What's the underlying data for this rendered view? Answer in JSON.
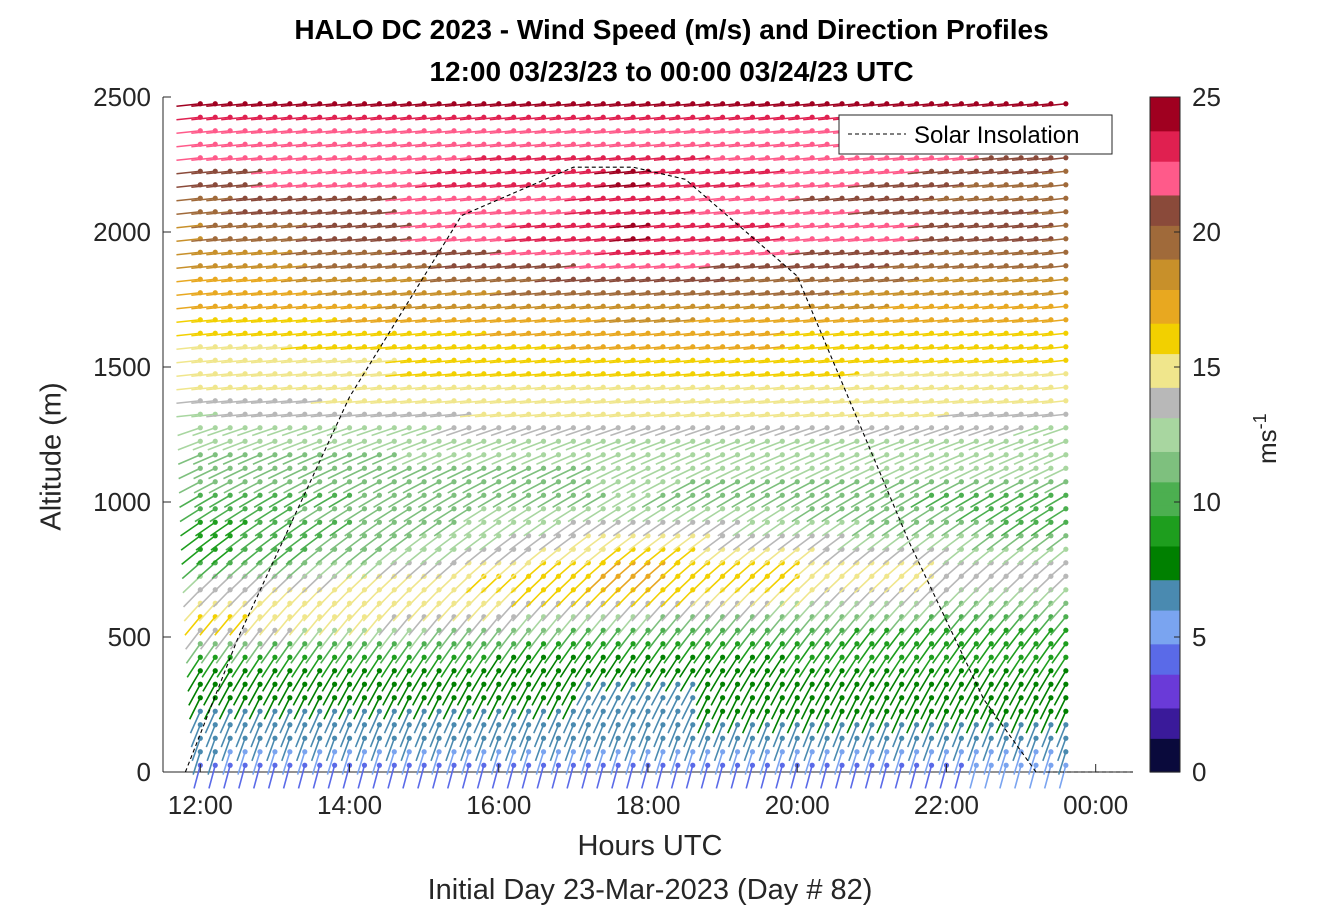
{
  "chart_data": {
    "type": "barbs",
    "title": "HALO DC 2023 - Wind Speed (m/s) and Direction Profiles",
    "subtitle": "12:00 03/23/23 to 00:00 03/24/23  UTC",
    "xlabel": "Hours UTC",
    "footer": "Initial Day 23-Mar-2023 (Day # 82)",
    "ylabel": "Altitude (m)",
    "xlim": [
      11.5,
      24.5
    ],
    "ylim": [
      0,
      2500
    ],
    "x_ticks": [
      12,
      14,
      16,
      18,
      20,
      22,
      24
    ],
    "x_tick_labels": [
      "12:00",
      "14:00",
      "16:00",
      "18:00",
      "20:00",
      "22:00",
      "00:00"
    ],
    "y_ticks": [
      0,
      500,
      1000,
      1500,
      2000,
      2500
    ],
    "y_tick_labels": [
      "0",
      "500",
      "1000",
      "1500",
      "2000",
      "2500"
    ],
    "colorbar": {
      "label_base": "ms",
      "label_exp": "-1",
      "range": [
        0,
        25
      ],
      "ticks": [
        0,
        5,
        10,
        15,
        20,
        25
      ],
      "tick_labels": [
        "0",
        "5",
        "10",
        "15",
        "20",
        "25"
      ],
      "colors": [
        "#0a0a3c",
        "#3a1a9a",
        "#6a3ad8",
        "#5a6ae8",
        "#7aa4f0",
        "#4a8ab0",
        "#008000",
        "#1e9e1e",
        "#4caf50",
        "#7ec07e",
        "#a8d6a0",
        "#b8b8b8",
        "#f0e68c",
        "#f2d000",
        "#e8a820",
        "#c8902a",
        "#a06a3a",
        "#8a4a3a",
        "#ff5a8a",
        "#e02050",
        "#a00020"
      ]
    },
    "legend": {
      "entries": [
        "Solar Insolation"
      ],
      "placement": "top-right"
    },
    "solar_insolation": {
      "description_points_hours": [
        11.8,
        12.5,
        14.0,
        15.5,
        17.0,
        17.8,
        18.5,
        20.0,
        21.5,
        22.5,
        23.2,
        24.5
      ],
      "relative_values": [
        0.0,
        0.22,
        0.62,
        0.92,
        1.0,
        1.0,
        0.98,
        0.82,
        0.38,
        0.12,
        0.0,
        0.0
      ]
    },
    "time_start_hour": 12.0,
    "time_end_hour": 23.75,
    "time_step_hours": 0.2,
    "altitudes_m": [
      25,
      75,
      125,
      175,
      225,
      275,
      325,
      375,
      425,
      475,
      525,
      575,
      625,
      675,
      725,
      775,
      825,
      875,
      925,
      975,
      1025,
      1075,
      1125,
      1175,
      1225,
      1275,
      1325,
      1375,
      1425,
      1475,
      1525,
      1575,
      1625,
      1675,
      1725,
      1775,
      1825,
      1875,
      1925,
      1975,
      2025,
      2075,
      2125,
      2175,
      2225,
      2275,
      2325,
      2375,
      2425,
      2475
    ],
    "speed_profile_ms": {
      "early": [
        4,
        6,
        7,
        7,
        7,
        8,
        8,
        8,
        9,
        11,
        14,
        16,
        15,
        14,
        13,
        10,
        9,
        9,
        9,
        10,
        10,
        11,
        11,
        11,
        12,
        12,
        13,
        14,
        15,
        15,
        15,
        15,
        16,
        16,
        17,
        17,
        17,
        18,
        18,
        19,
        19,
        20,
        20,
        21,
        21,
        22,
        22,
        22,
        23,
        24
      ],
      "middle": [
        4,
        5,
        6,
        7,
        7,
        7,
        7,
        8,
        8,
        9,
        10,
        12,
        14,
        16,
        17,
        17,
        16,
        15,
        14,
        13,
        12,
        12,
        12,
        13,
        13,
        14,
        15,
        15,
        15,
        16,
        16,
        17,
        17,
        18,
        19,
        20,
        21,
        22,
        23,
        24,
        24,
        23,
        23,
        24,
        24,
        23,
        22,
        22,
        23,
        24
      ],
      "late": [
        5,
        6,
        7,
        7,
        8,
        8,
        8,
        8,
        9,
        9,
        9,
        10,
        11,
        12,
        13,
        13,
        12,
        11,
        10,
        10,
        10,
        11,
        12,
        12,
        12,
        13,
        14,
        15,
        15,
        15,
        16,
        16,
        16,
        17,
        17,
        18,
        18,
        19,
        19,
        20,
        20,
        20,
        19,
        19,
        20,
        21,
        22,
        22,
        23,
        24
      ]
    },
    "direction_note": "barbs point right/up-right in low levels shifting to nearly horizontal aloft"
  }
}
